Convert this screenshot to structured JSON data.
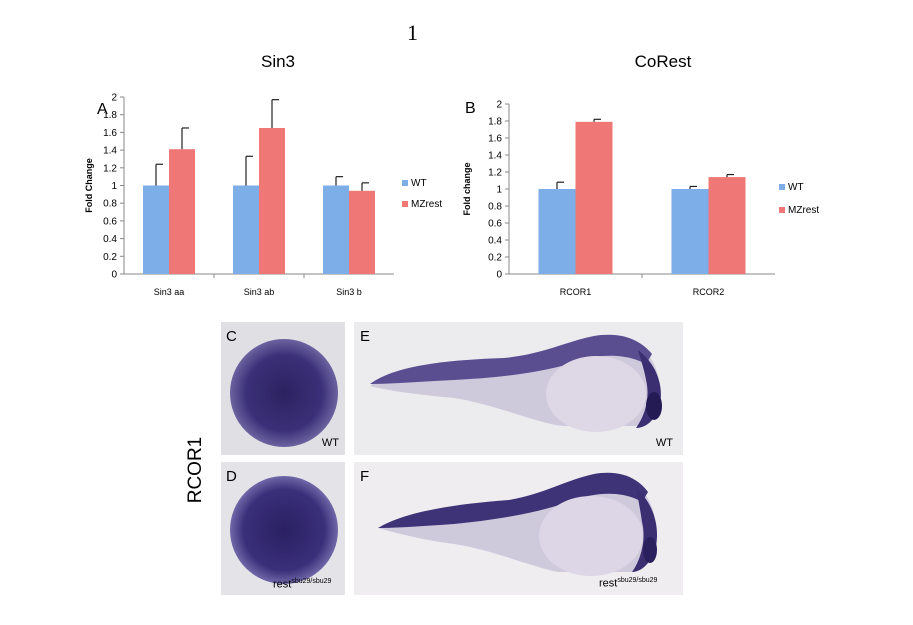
{
  "page": {
    "number": "1"
  },
  "figure": {
    "side_label": "RCOR1",
    "panel_a": {
      "letter": "A"
    },
    "panel_b": {
      "letter": "B"
    },
    "panel_c": {
      "letter": "C",
      "caption": "WT"
    },
    "panel_d": {
      "letter": "D",
      "caption_base": "rest",
      "caption_sup": "sbu29/sbu29"
    },
    "panel_e": {
      "letter": "E",
      "caption": "WT"
    },
    "panel_f": {
      "letter": "F",
      "caption_base": "rest",
      "caption_sup": "sbu29/sbu29"
    }
  },
  "colors": {
    "wt": "#7eaee8",
    "mzrest": "#ef7775",
    "stain": "#3d2f70",
    "bg_plate": "#e7e5ea"
  },
  "chart_data": [
    {
      "type": "bar",
      "title": "Sin3",
      "ylabel": "Fold Change",
      "xlabel": "",
      "categories": [
        "Sin3 aa",
        "Sin3 ab",
        "Sin3 b"
      ],
      "series": [
        {
          "name": "WT",
          "values": [
            1,
            1,
            1
          ],
          "errors": [
            0.24,
            0.33,
            0.1
          ]
        },
        {
          "name": "MZrest",
          "values": [
            1.41,
            1.65,
            0.94
          ],
          "errors": [
            0.24,
            0.32,
            0.09
          ]
        }
      ],
      "ylim": [
        0,
        2
      ],
      "yticks": [
        "0",
        "0.2",
        "0.4",
        "0.6",
        "0.8",
        "1",
        "1.2",
        "1.4",
        "1.6",
        "1.8",
        "2"
      ],
      "legend": "right",
      "grid": false
    },
    {
      "type": "bar",
      "title": "CoRest",
      "ylabel": "Fold change",
      "xlabel": "",
      "categories": [
        "RCOR1",
        "RCOR2"
      ],
      "series": [
        {
          "name": "WT",
          "values": [
            1,
            1
          ],
          "errors": [
            0.08,
            0.03
          ]
        },
        {
          "name": "MZrest",
          "values": [
            1.79,
            1.14
          ],
          "errors": [
            0.03,
            0.03
          ]
        }
      ],
      "ylim": [
        0,
        2
      ],
      "yticks": [
        "0",
        "0.2",
        "0.4",
        "0.6",
        "0.8",
        "1",
        "1.2",
        "1.4",
        "1.6",
        "1.8",
        "2"
      ],
      "legend": "right",
      "grid": false
    }
  ]
}
